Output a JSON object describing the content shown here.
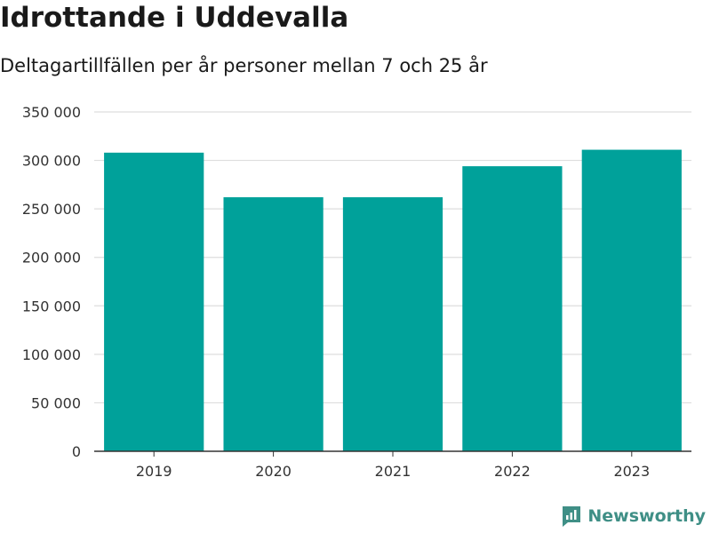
{
  "title": "Idrottande i Uddevalla",
  "subtitle": "Deltagartillfällen per år personer mellan 7 och 25 år",
  "brand": {
    "name": "Newsworthy",
    "icon": "newsworthy-logo-icon",
    "color": "#3f8f86"
  },
  "chart_data": {
    "type": "bar",
    "categories": [
      "2019",
      "2020",
      "2021",
      "2022",
      "2023"
    ],
    "values": [
      308000,
      262000,
      262000,
      294000,
      311000
    ],
    "ylim": [
      0,
      350000
    ],
    "yticks": [
      0,
      50000,
      100000,
      150000,
      200000,
      250000,
      300000,
      350000
    ],
    "ytick_labels": [
      "0",
      "50 000",
      "100 000",
      "150 000",
      "200 000",
      "250 000",
      "300 000",
      "350 000"
    ],
    "bar_color": "#00a19a",
    "grid": true,
    "legend": false
  }
}
